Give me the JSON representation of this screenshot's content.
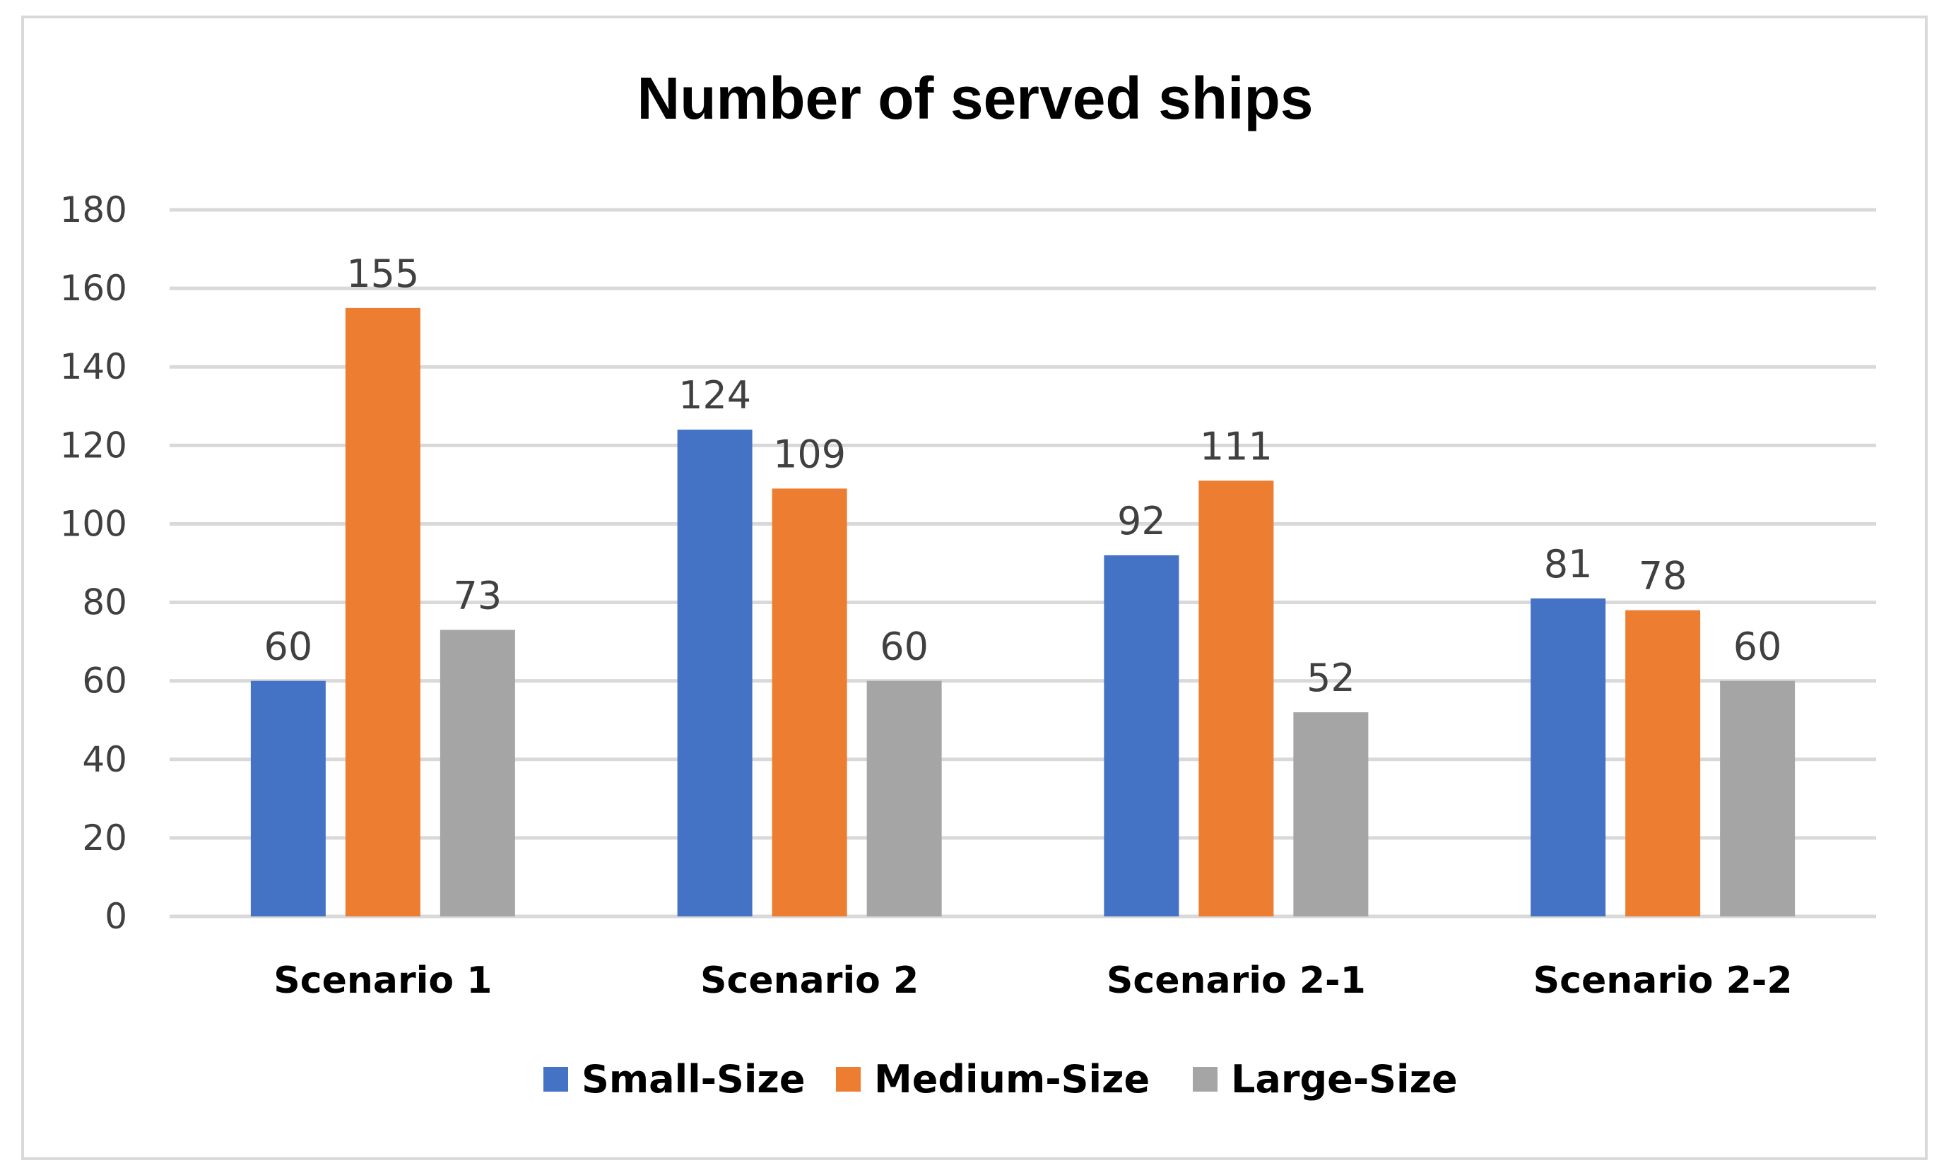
{
  "chart_data": {
    "type": "bar",
    "title": "Number of served ships",
    "xlabel": "",
    "ylabel": "",
    "ylim": [
      0,
      180
    ],
    "yticks": [
      0,
      20,
      40,
      60,
      80,
      100,
      120,
      140,
      160,
      180
    ],
    "grid": true,
    "legend_position": "bottom",
    "categories": [
      "Scenario 1",
      "Scenario 2",
      "Scenario 2-1",
      "Scenario 2-2"
    ],
    "series": [
      {
        "name": "Small-Size",
        "color": "#4472c4",
        "values": [
          60,
          124,
          92,
          81
        ]
      },
      {
        "name": "Medium-Size",
        "color": "#ed7d31",
        "values": [
          155,
          109,
          111,
          78
        ]
      },
      {
        "name": "Large-Size",
        "color": "#a5a5a5",
        "values": [
          73,
          60,
          52,
          60
        ]
      }
    ]
  }
}
